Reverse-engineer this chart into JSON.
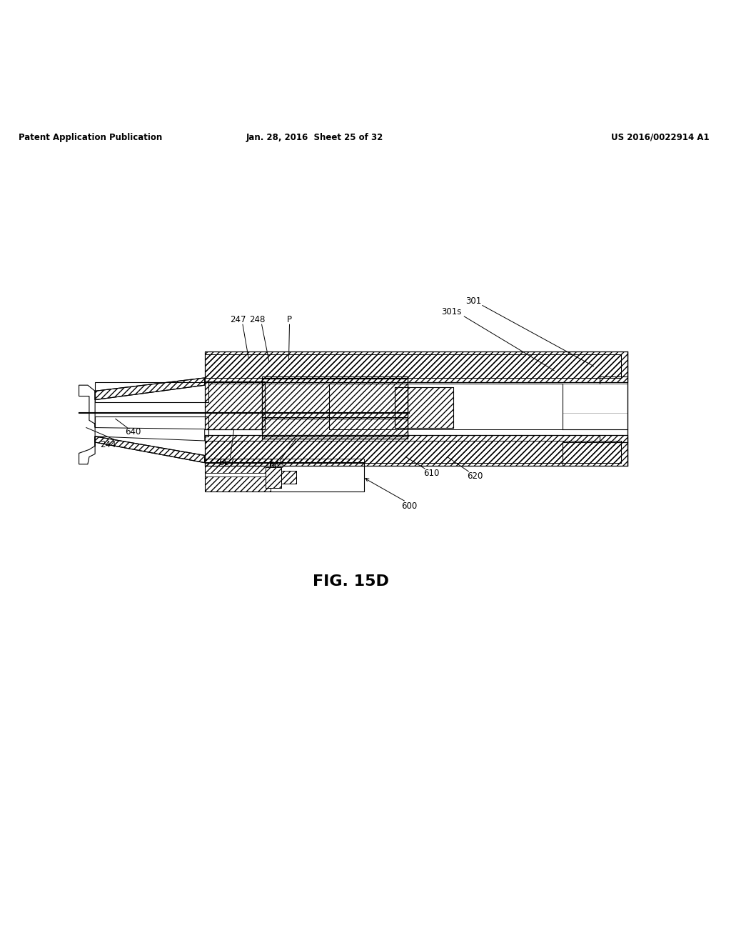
{
  "bg_color": "#ffffff",
  "header_left": "Patent Application Publication",
  "header_center": "Jan. 28, 2016  Sheet 25 of 32",
  "header_right": "US 2016/0022914 A1",
  "figure_label": "FIG. 15D"
}
